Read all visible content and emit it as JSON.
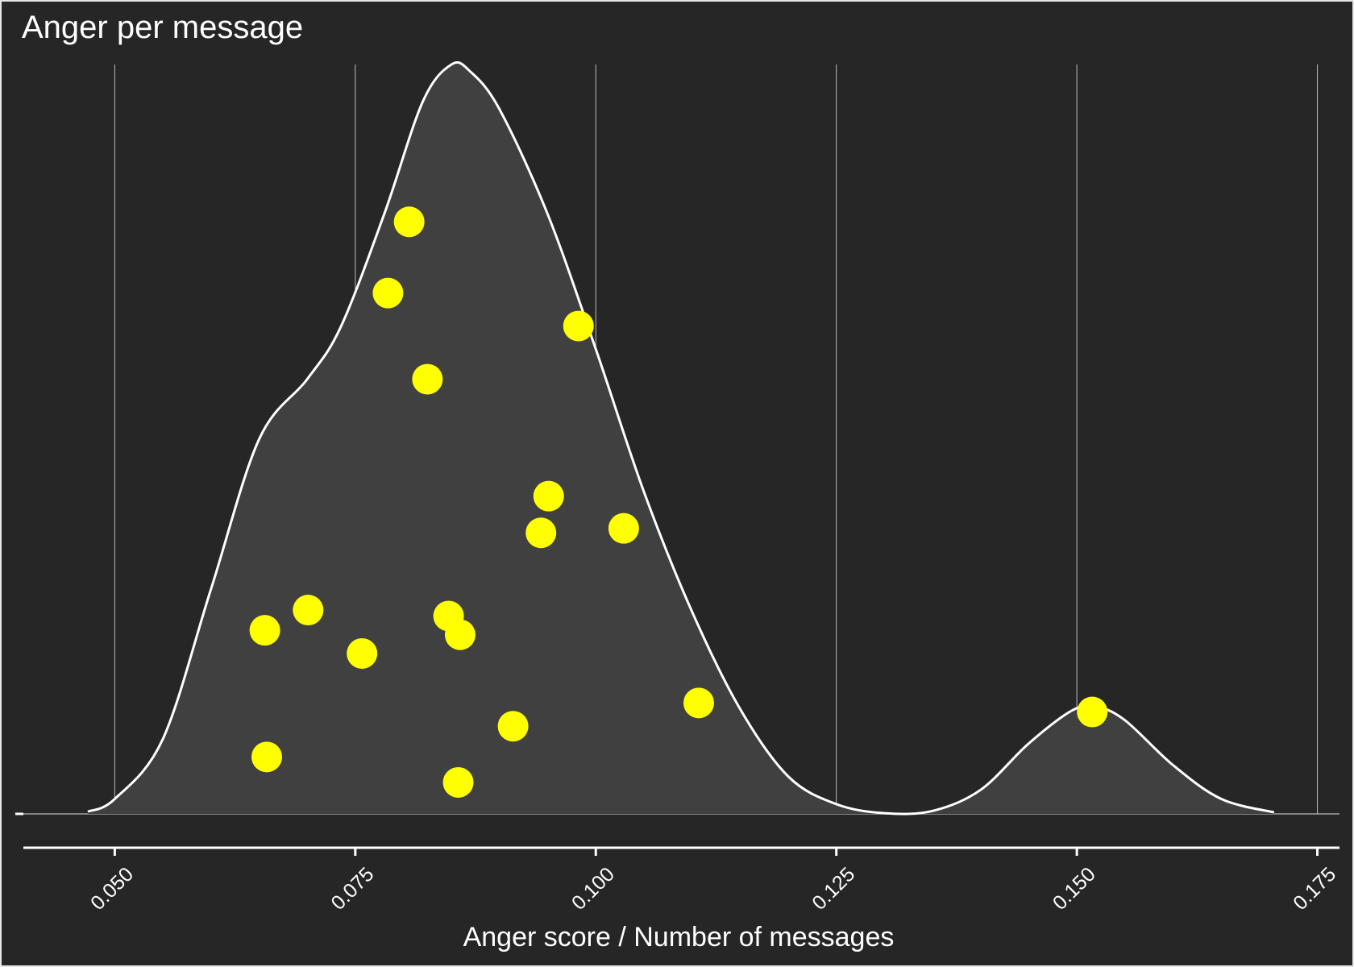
{
  "chart_data": {
    "type": "area",
    "title": "Anger per message",
    "xlabel": "Anger score / Number of messages",
    "ylabel": "",
    "x_ticks": [
      "0.050",
      "0.075",
      "0.100",
      "0.125",
      "0.150",
      "0.175"
    ],
    "x_tick_values": [
      0.05,
      0.075,
      0.1,
      0.125,
      0.15,
      0.175
    ],
    "xlim": [
      0.0405,
      0.1773
    ],
    "grid": "vertical",
    "legend": "none",
    "colors": {
      "background": "#262626",
      "density_fill": "#404040",
      "density_line": "#ffffff",
      "points": "#ffff00",
      "grid": "#bdbdbd"
    },
    "density": {
      "x": [
        0.0472,
        0.05,
        0.055,
        0.06,
        0.065,
        0.07,
        0.0735,
        0.078,
        0.082,
        0.085,
        0.087,
        0.09,
        0.095,
        0.1,
        0.105,
        0.11,
        0.115,
        0.12,
        0.125,
        0.13,
        0.135,
        0.14,
        0.145,
        0.1495,
        0.152,
        0.155,
        0.16,
        0.165,
        0.1705
      ],
      "y": [
        0.003,
        0.02,
        0.1,
        0.3,
        0.5,
        0.58,
        0.65,
        0.8,
        0.95,
        1.0,
        0.99,
        0.94,
        0.8,
        0.62,
        0.43,
        0.27,
        0.14,
        0.05,
        0.013,
        0.001,
        0.004,
        0.032,
        0.094,
        0.138,
        0.143,
        0.125,
        0.065,
        0.02,
        0.002
      ]
    },
    "points": [
      {
        "x": 0.0806,
        "y": 0.79
      },
      {
        "x": 0.0784,
        "y": 0.695
      },
      {
        "x": 0.0982,
        "y": 0.651
      },
      {
        "x": 0.0825,
        "y": 0.58
      },
      {
        "x": 0.0951,
        "y": 0.424
      },
      {
        "x": 0.1029,
        "y": 0.381
      },
      {
        "x": 0.0943,
        "y": 0.375
      },
      {
        "x": 0.0701,
        "y": 0.272
      },
      {
        "x": 0.0656,
        "y": 0.245
      },
      {
        "x": 0.0847,
        "y": 0.264
      },
      {
        "x": 0.0859,
        "y": 0.239
      },
      {
        "x": 0.0757,
        "y": 0.214
      },
      {
        "x": 0.1107,
        "y": 0.148
      },
      {
        "x": 0.1516,
        "y": 0.136
      },
      {
        "x": 0.0914,
        "y": 0.117
      },
      {
        "x": 0.0658,
        "y": 0.076
      },
      {
        "x": 0.0857,
        "y": 0.042
      }
    ]
  }
}
